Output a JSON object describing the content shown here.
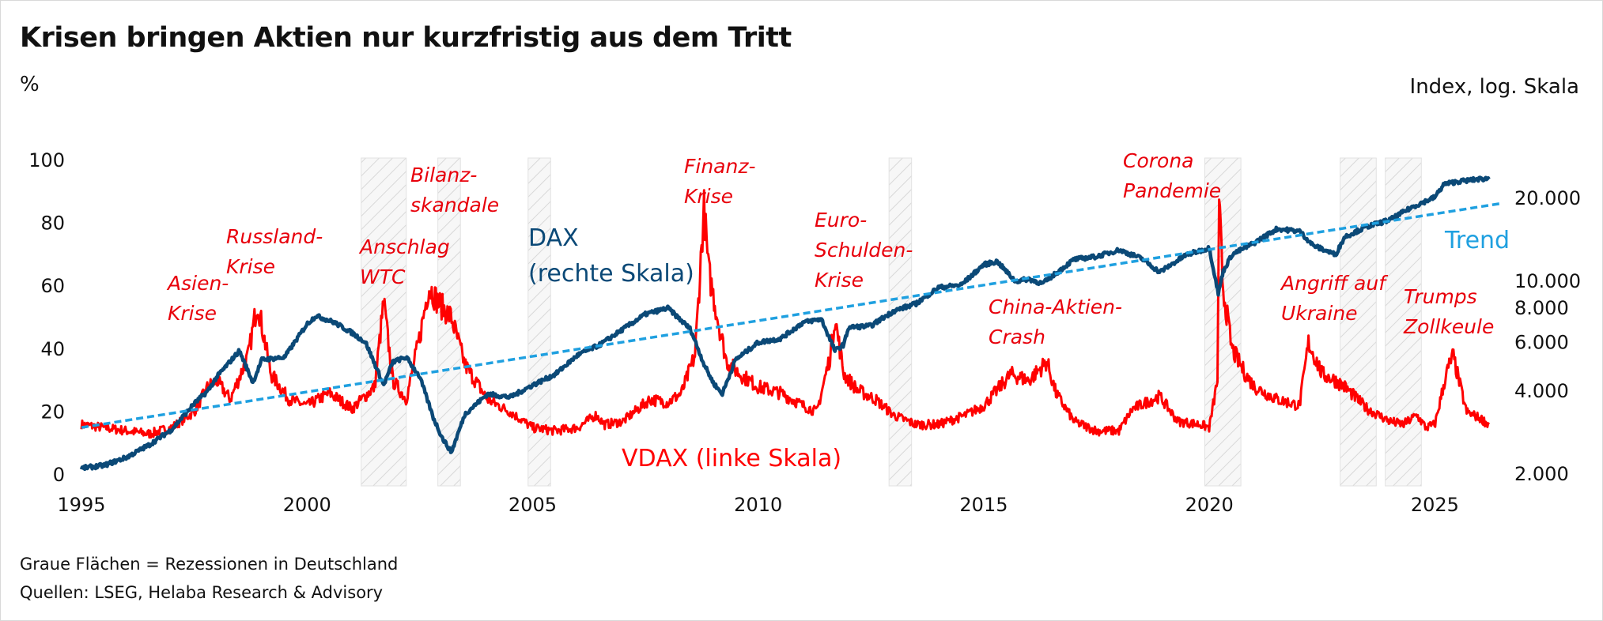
{
  "chart_data": {
    "type": "line",
    "title": "Krisen bringen Aktien nur kurzfristig aus dem Tritt",
    "left_axis": {
      "unit": "%",
      "range": [
        0,
        100
      ],
      "ticks": [
        "0",
        "20",
        "40",
        "60",
        "80",
        "100"
      ]
    },
    "right_axis": {
      "unit": "Index, log. Skala",
      "scale": "log",
      "range": [
        1900,
        30000
      ],
      "ticks": [
        2000,
        4000,
        6000,
        8000,
        10000,
        20000
      ],
      "tick_labels": [
        "2.000",
        "4.000",
        "6.000",
        "8.000",
        "10.000",
        "20.000"
      ]
    },
    "x_axis": {
      "range": [
        1995,
        2026.5
      ],
      "ticks": [
        "1995",
        "2000",
        "2005",
        "2010",
        "2015",
        "2020",
        "2025"
      ]
    },
    "recessions": [
      [
        2001.2,
        2002.2
      ],
      [
        2002.9,
        2003.4
      ],
      [
        2004.9,
        2005.4
      ],
      [
        2012.9,
        2013.4
      ],
      [
        2019.9,
        2020.7
      ],
      [
        2022.9,
        2023.7
      ],
      [
        2023.9,
        2024.7
      ]
    ],
    "series": [
      {
        "name": "VDAX",
        "label": "VDAX (linke Skala)",
        "axis": "left",
        "color": "#ff0000",
        "x": [
          1995,
          1995.5,
          1996,
          1996.5,
          1997,
          1997.5,
          1997.8,
          1998,
          1998.3,
          1998.7,
          1998.9,
          1999.2,
          1999.6,
          2000,
          2000.5,
          2001,
          2001.5,
          2001.7,
          2001.9,
          2002.2,
          2002.5,
          2002.7,
          2002.9,
          2003.2,
          2003.5,
          2004,
          2004.5,
          2005,
          2005.5,
          2006,
          2006.4,
          2006.6,
          2007,
          2007.6,
          2008,
          2008.3,
          2008.6,
          2008.8,
          2008.9,
          2009.1,
          2009.3,
          2009.6,
          2010,
          2010.5,
          2011,
          2011.3,
          2011.6,
          2011.7,
          2011.9,
          2012.2,
          2012.6,
          2013,
          2013.5,
          2014,
          2014.6,
          2015,
          2015.6,
          2016,
          2016.4,
          2016.6,
          2017,
          2017.5,
          2018,
          2018.3,
          2018.9,
          2019.3,
          2019.8,
          2020,
          2020.18,
          2020.22,
          2020.3,
          2020.5,
          2020.8,
          2021,
          2021.5,
          2022,
          2022.2,
          2022.5,
          2022.8,
          2023,
          2023.5,
          2024,
          2024.3,
          2024.6,
          2024.8,
          2025,
          2025.25,
          2025.4,
          2025.7,
          2026,
          2026.2
        ],
        "values": [
          16,
          15,
          14,
          13,
          15,
          20,
          28,
          30,
          24,
          38,
          55,
          32,
          24,
          22,
          26,
          21,
          28,
          55,
          30,
          24,
          44,
          60,
          55,
          50,
          35,
          24,
          20,
          15,
          14,
          15,
          19,
          16,
          17,
          24,
          23,
          26,
          38,
          85,
          65,
          50,
          36,
          32,
          28,
          26,
          22,
          20,
          38,
          50,
          32,
          27,
          24,
          19,
          16,
          16,
          19,
          22,
          32,
          30,
          36,
          26,
          17,
          14,
          14,
          21,
          25,
          17,
          16,
          15,
          30,
          86,
          60,
          40,
          32,
          28,
          24,
          22,
          42,
          32,
          30,
          28,
          21,
          17,
          16,
          19,
          15,
          16,
          32,
          38,
          20,
          18,
          16
        ]
      },
      {
        "name": "DAX",
        "label": "DAX",
        "label2": "(rechte Skala)",
        "axis": "right",
        "color": "#0b4977",
        "x": [
          1995,
          1995.5,
          1996,
          1996.5,
          1997,
          1997.5,
          1997.8,
          1998,
          1998.5,
          1998.8,
          1999,
          1999.5,
          2000,
          2000.2,
          2000.6,
          2001,
          2001.3,
          2001.7,
          2001.9,
          2002.2,
          2002.5,
          2002.8,
          2003.0,
          2003.2,
          2003.5,
          2004,
          2004.5,
          2005,
          2005.5,
          2006,
          2006.5,
          2007,
          2007.5,
          2008,
          2008.5,
          2008.8,
          2009,
          2009.2,
          2009.5,
          2010,
          2010.5,
          2011,
          2011.4,
          2011.7,
          2011.9,
          2012,
          2012.5,
          2013,
          2013.5,
          2014,
          2014.5,
          2015,
          2015.3,
          2015.7,
          2016,
          2016.3,
          2017,
          2017.5,
          2018,
          2018.5,
          2018.9,
          2019.5,
          2020,
          2020.2,
          2020.3,
          2020.5,
          2021,
          2021.5,
          2022,
          2022.3,
          2022.8,
          2023,
          2023.5,
          2024,
          2024.5,
          2025,
          2025.2,
          2025.5,
          2026,
          2026.2
        ],
        "values": [
          2100,
          2150,
          2300,
          2550,
          2900,
          3600,
          4000,
          4500,
          5600,
          4300,
          5200,
          5300,
          7000,
          7500,
          7100,
          6500,
          6000,
          4200,
          5100,
          5300,
          4500,
          3200,
          2700,
          2400,
          3300,
          3900,
          3800,
          4200,
          4600,
          5400,
          5900,
          6700,
          7600,
          8000,
          6700,
          5000,
          4300,
          3900,
          5200,
          6000,
          6200,
          7100,
          7300,
          5600,
          5900,
          6800,
          6900,
          7800,
          8300,
          9500,
          9700,
          11500,
          11800,
          10000,
          10200,
          9800,
          12000,
          12300,
          13000,
          12100,
          10800,
          12500,
          13200,
          9000,
          10800,
          12500,
          13800,
          15500,
          15200,
          13500,
          12500,
          14500,
          15800,
          16700,
          18600,
          20200,
          22500,
          23000,
          23500,
          23600
        ]
      },
      {
        "name": "Trend",
        "label": "Trend",
        "axis": "right",
        "color": "#1fa0e0",
        "style": "dashed",
        "x": [
          1995,
          2026.5
        ],
        "values": [
          2950,
          19200
        ]
      }
    ],
    "annotations": [
      {
        "lines": [
          "Asien-",
          "Krise"
        ]
      },
      {
        "lines": [
          "Russland-",
          "Krise"
        ]
      },
      {
        "lines": [
          "Anschlag",
          "WTC"
        ]
      },
      {
        "lines": [
          "Bilanz-",
          "skandale"
        ]
      },
      {
        "lines": [
          "Finanz-",
          "Krise"
        ]
      },
      {
        "lines": [
          "Euro-",
          "Schulden-",
          "Krise"
        ]
      },
      {
        "lines": [
          "China-Aktien-",
          "Crash"
        ]
      },
      {
        "lines": [
          "Corona",
          "Pandemie"
        ]
      },
      {
        "lines": [
          "Angriff auf",
          "Ukraine"
        ]
      },
      {
        "lines": [
          "Trumps",
          "Zollkeule"
        ]
      }
    ]
  },
  "footer": {
    "note": "Graue Flächen = Rezessionen in Deutschland",
    "source": "Quellen: LSEG, Helaba Research & Advisory"
  }
}
